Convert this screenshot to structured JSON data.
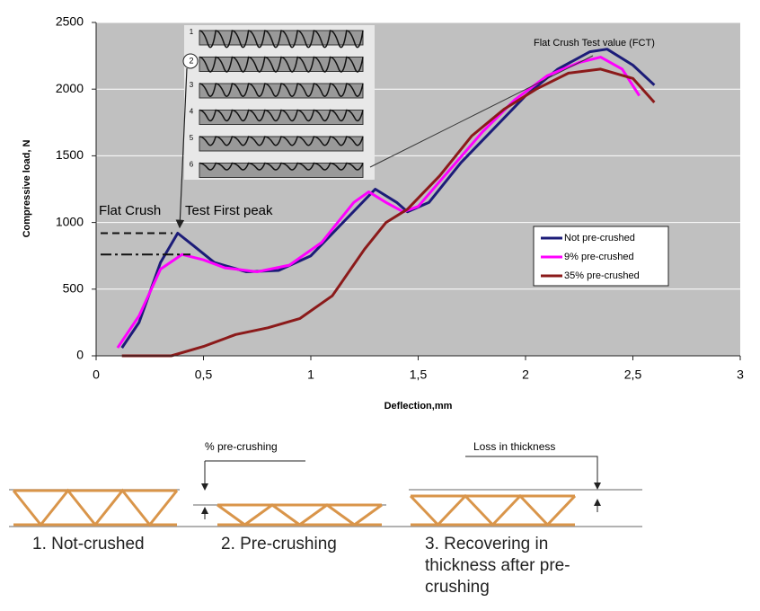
{
  "chart_data": {
    "type": "line",
    "xlabel": "Deflection,mm",
    "ylabel": "Compressive load, N",
    "xlim": [
      0,
      3
    ],
    "ylim": [
      0,
      2500
    ],
    "xticks": [
      0,
      {
        "value": 0.5,
        "label": "0,5"
      },
      1,
      {
        "value": 1.5,
        "label": "1,5"
      },
      2,
      {
        "value": 2.5,
        "label": "2,5"
      },
      3
    ],
    "yticks": [
      0,
      500,
      1000,
      1500,
      2000,
      2500
    ],
    "grid": true,
    "legend": "right",
    "series": [
      {
        "name": "Not pre-crushed",
        "color": "#1c1c78",
        "x": [
          0.12,
          0.2,
          0.3,
          0.38,
          0.45,
          0.55,
          0.7,
          0.85,
          1.0,
          1.15,
          1.3,
          1.4,
          1.45,
          1.55,
          1.7,
          1.85,
          2.0,
          2.15,
          2.3,
          2.38,
          2.5,
          2.6
        ],
        "values": [
          60,
          250,
          700,
          920,
          830,
          700,
          630,
          640,
          750,
          1000,
          1250,
          1150,
          1080,
          1150,
          1450,
          1700,
          1950,
          2150,
          2280,
          2300,
          2180,
          2030
        ]
      },
      {
        "name": "9% pre-crushed",
        "color": "#ff00ff",
        "x": [
          0.1,
          0.2,
          0.3,
          0.4,
          0.5,
          0.6,
          0.75,
          0.9,
          1.05,
          1.2,
          1.27,
          1.35,
          1.43,
          1.5,
          1.65,
          1.8,
          1.95,
          2.1,
          2.25,
          2.35,
          2.45,
          2.53
        ],
        "values": [
          60,
          300,
          650,
          760,
          720,
          660,
          630,
          680,
          850,
          1150,
          1230,
          1150,
          1080,
          1120,
          1400,
          1680,
          1920,
          2100,
          2200,
          2240,
          2150,
          1950
        ]
      },
      {
        "name": "35% pre-crushed",
        "color": "#8b1a1a",
        "x": [
          0.12,
          0.35,
          0.5,
          0.65,
          0.8,
          0.95,
          1.1,
          1.25,
          1.35,
          1.45,
          1.6,
          1.75,
          1.9,
          2.05,
          2.2,
          2.35,
          2.5,
          2.6
        ],
        "values": [
          0,
          0,
          70,
          160,
          210,
          280,
          450,
          800,
          1000,
          1100,
          1350,
          1650,
          1850,
          2000,
          2120,
          2150,
          2080,
          1900
        ]
      }
    ],
    "annotations": [
      "Flat Crush Test value (FCT)",
      "Flat Crush",
      "Test First peak"
    ],
    "inset_labels": [
      "1",
      "2",
      "3",
      "4",
      "5",
      "6"
    ]
  },
  "diagram": {
    "labels": [
      "1. Not-crushed",
      "2. Pre-crushing",
      "3. Recovering in thickness after pre-crushing"
    ],
    "annotations": [
      "% pre-crushing",
      "Loss in thickness"
    ]
  }
}
